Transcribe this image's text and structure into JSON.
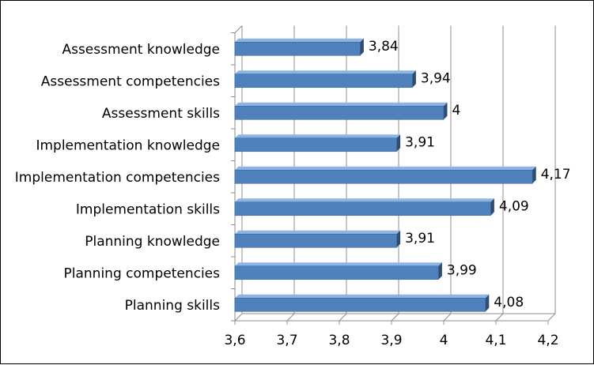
{
  "chart_data": {
    "type": "bar",
    "orientation": "horizontal",
    "categories": [
      "Assessment knowledge",
      "Assessment competencies",
      "Assessment skills",
      "Implementation knowledge",
      "Implementation competencies",
      "Implementation skills",
      "Planning knowledge",
      "Planning competencies",
      "Planning skills"
    ],
    "values": [
      3.84,
      3.94,
      4,
      3.91,
      4.17,
      4.09,
      3.91,
      3.99,
      4.08
    ],
    "value_labels": [
      "3,84",
      "3,94",
      "4",
      "3,91",
      "4,17",
      "4,09",
      "3,91",
      "3,99",
      "4,08"
    ],
    "x_ticks": [
      "3,6",
      "3,7",
      "3,8",
      "3,9",
      "4",
      "4,1",
      "4,2"
    ],
    "xlim": [
      3.6,
      4.2
    ],
    "grid": true,
    "legend": "none",
    "colors": {
      "bar_front": "#4F81BD",
      "bar_top": "#8EB4E3",
      "bar_side": "#2C4D75",
      "grid": "#8C8C8C"
    }
  }
}
